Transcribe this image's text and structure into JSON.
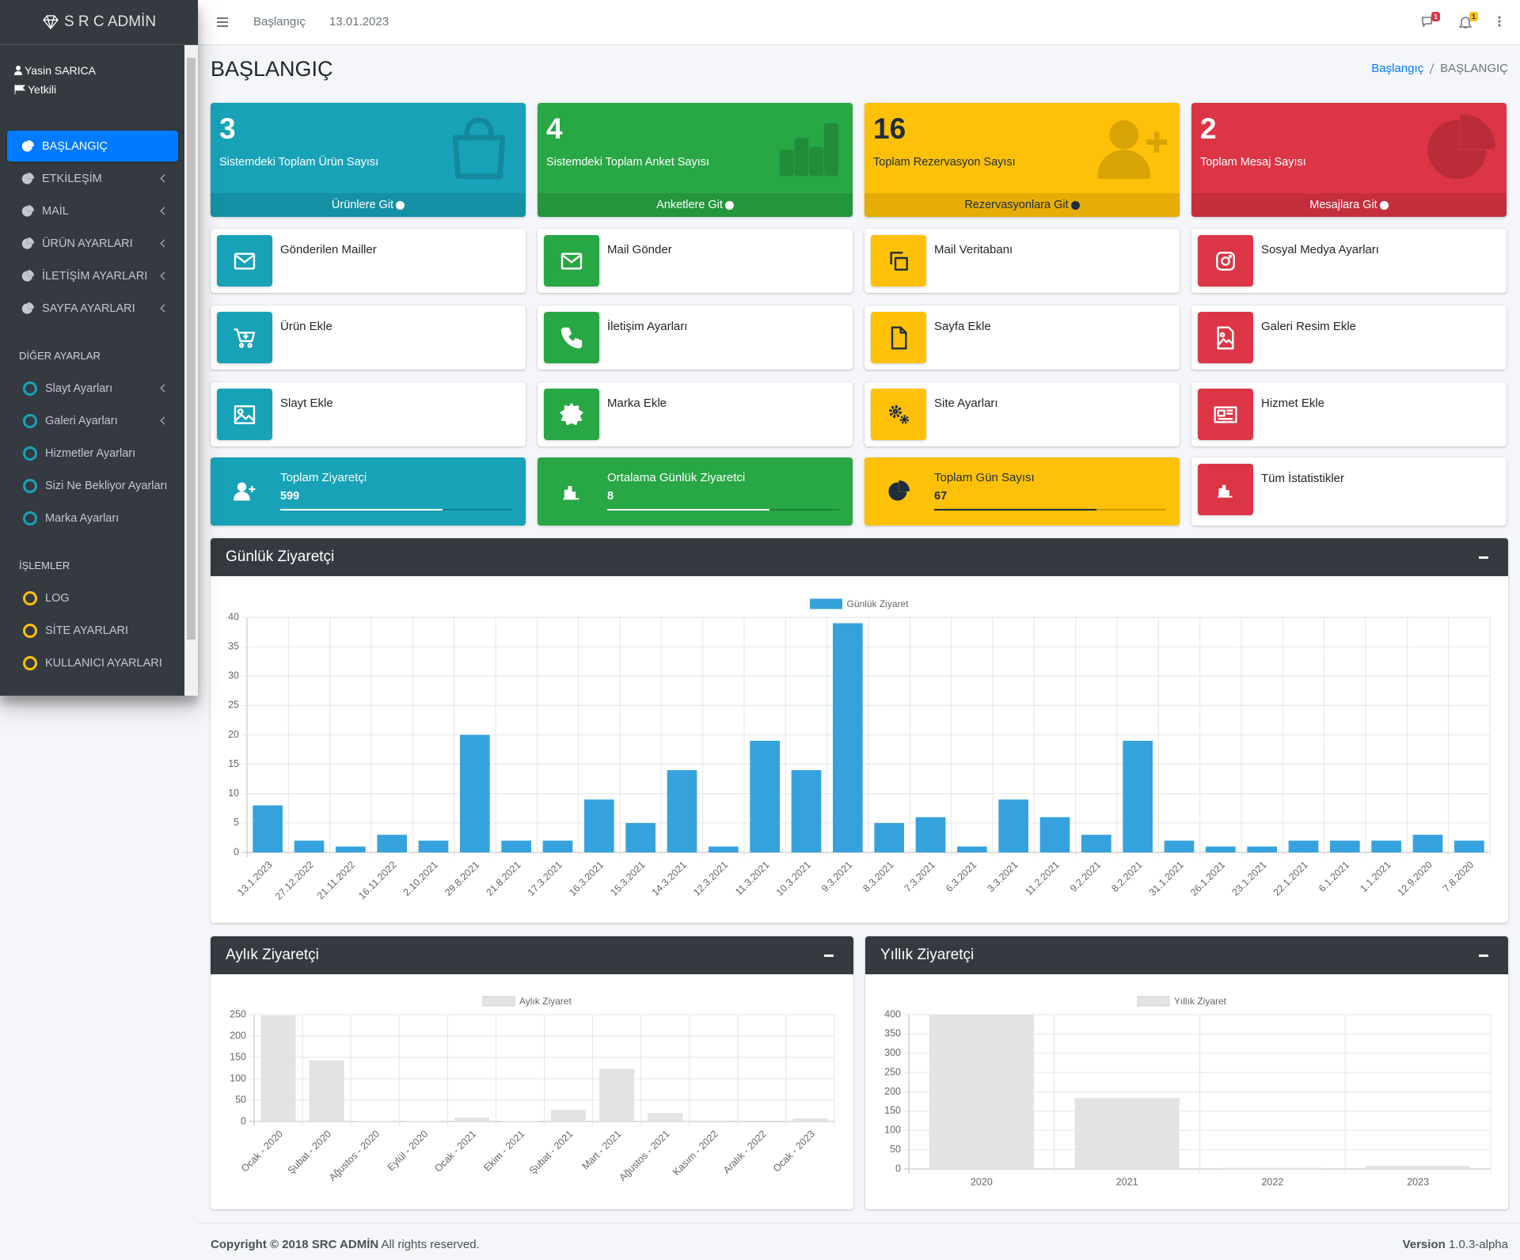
{
  "sidebar": {
    "brand": "S R C ADMİN",
    "user": {
      "name": "Yasin SARICA",
      "role": "Yetkili"
    },
    "menu": [
      {
        "label": "BAŞLANGIÇ",
        "active": true
      },
      {
        "label": "ETKİLEŞİM",
        "has_submenu": true
      },
      {
        "label": "MAİL",
        "has_submenu": true
      },
      {
        "label": "ÜRÜN AYARLARI",
        "has_submenu": true
      },
      {
        "label": "İLETİŞİM AYARLARI",
        "has_submenu": true
      },
      {
        "label": "SAYFA AYARLARI",
        "has_submenu": true
      }
    ],
    "sections": [
      {
        "header": "DİĞER AYARLAR",
        "color": "#17a2b8",
        "items": [
          {
            "label": "Slayt Ayarları",
            "has_submenu": true
          },
          {
            "label": "Galeri Ayarları",
            "has_submenu": true
          },
          {
            "label": "Hizmetler Ayarları"
          },
          {
            "label": "Sizi Ne Bekliyor Ayarları"
          },
          {
            "label": "Marka Ayarları"
          }
        ]
      },
      {
        "header": "İŞLEMLER",
        "color": "#ffc107",
        "items": [
          {
            "label": "LOG"
          },
          {
            "label": "SİTE AYARLARI"
          },
          {
            "label": "KULLANICI AYARLARI"
          }
        ]
      }
    ]
  },
  "topbar": {
    "links": [
      "Başlangıç",
      "13.01.2023"
    ],
    "badges": [
      {
        "value": 1,
        "color": "#dc3545"
      },
      {
        "value": 1,
        "color": "#ffc107"
      }
    ]
  },
  "header": {
    "title": "BAŞLANGIÇ",
    "breadcrumb": [
      "Başlangıç",
      "BAŞLANGIÇ"
    ]
  },
  "small_boxes": [
    {
      "value": 3,
      "text": "Sistemdeki Toplam Ürün Sayısı",
      "link": "Ürünlere Git",
      "color": "#17a2b8"
    },
    {
      "value": 4,
      "text": "Sistemdeki Toplam Anket Sayısı",
      "link": "Anketlere Git",
      "color": "#28a745"
    },
    {
      "value": 16,
      "text": "Toplam Rezervasyon Sayısı",
      "link": "Rezervasyonlara Git",
      "color": "#ffc107"
    },
    {
      "value": 2,
      "text": "Toplam Mesaj Sayısı",
      "link": "Mesajlara Git",
      "color": "#dc3545"
    }
  ],
  "shortcuts": [
    {
      "label": "Gönderilen Mailler",
      "color": "#17a2b8"
    },
    {
      "label": "Mail Gönder",
      "color": "#28a745"
    },
    {
      "label": "Mail Veritabanı",
      "color": "#ffc107"
    },
    {
      "label": "Sosyal Medya Ayarları",
      "color": "#dc3545"
    },
    {
      "label": "Ürün Ekle",
      "color": "#17a2b8"
    },
    {
      "label": "İletişim Ayarları",
      "color": "#28a745"
    },
    {
      "label": "Sayfa Ekle",
      "color": "#ffc107"
    },
    {
      "label": "Galeri Resim Ekle",
      "color": "#dc3545"
    },
    {
      "label": "Slayt Ekle",
      "color": "#17a2b8"
    },
    {
      "label": "Marka Ekle",
      "color": "#28a745"
    },
    {
      "label": "Site Ayarları",
      "color": "#ffc107"
    },
    {
      "label": "Hizmet Ekle",
      "color": "#dc3545"
    }
  ],
  "stats": [
    {
      "label": "Toplam Ziyaretçi",
      "value": 599,
      "color": "#17a2b8"
    },
    {
      "label": "Ortalama Günlük Ziyaretci",
      "value": 8,
      "color": "#28a745"
    },
    {
      "label": "Toplam Gün Sayısı",
      "value": 67,
      "color": "#ffc107"
    },
    {
      "label": "Tüm İstatistikler",
      "color": "#dc3545"
    }
  ],
  "chart_data": [
    {
      "type": "bar",
      "title": "Günlük Ziyaretçi",
      "categories": [
        "13.1.2023",
        "27.12.2022",
        "21.11.2022",
        "16.11.2022",
        "2.10.2021",
        "29.8.2021",
        "21.8.2021",
        "17.3.2021",
        "16.3.2021",
        "15.3.2021",
        "14.3.2021",
        "12.3.2021",
        "11.3.2021",
        "10.3.2021",
        "9.3.2021",
        "8.3.2021",
        "7.3.2021",
        "6.3.2021",
        "3.3.2021",
        "11.2.2021",
        "9.2.2021",
        "8.2.2021",
        "31.1.2021",
        "26.1.2021",
        "23.1.2021",
        "22.1.2021",
        "6.1.2021",
        "1.1.2021",
        "12.9.2020",
        "7.8.2020"
      ],
      "series": [
        {
          "name": "Günlük Ziyaret",
          "color": "#36a2dd",
          "values": [
            8,
            2,
            1,
            3,
            2,
            20,
            2,
            2,
            9,
            5,
            14,
            1,
            19,
            14,
            39,
            5,
            6,
            1,
            9,
            6,
            3,
            19,
            2,
            1,
            1,
            2,
            2,
            2,
            3,
            2
          ]
        }
      ],
      "ylim": [
        0,
        40
      ],
      "yticks": [
        0,
        5,
        10,
        15,
        20,
        25,
        30,
        35,
        40
      ],
      "grid": true
    },
    {
      "type": "bar",
      "title": "Aylık Ziyaretçi",
      "categories": [
        "Ocak - 2020",
        "Şubat - 2020",
        "Ağustos - 2020",
        "Eylül - 2020",
        "Ocak - 2021",
        "Ekim - 2021",
        "Şubat - 2021",
        "Mart - 2021",
        "Ağustos - 2021",
        "Kasım - 2022",
        "Aralık - 2022",
        "Ocak - 2023"
      ],
      "series": [
        {
          "name": "Aylık Ziyaret",
          "color": "#e3e3e3",
          "values": [
            248,
            143,
            1,
            1,
            9,
            1,
            27,
            123,
            20,
            2,
            0,
            7
          ]
        }
      ],
      "ylim": [
        0,
        250
      ],
      "yticks": [
        0,
        50,
        100,
        150,
        200,
        250
      ],
      "grid": true
    },
    {
      "type": "bar",
      "title": "Yıllık Ziyaretçi",
      "categories": [
        "2020",
        "2021",
        "2022",
        "2023"
      ],
      "series": [
        {
          "name": "Yıllık Ziyaret",
          "color": "#e3e3e3",
          "values": [
            400,
            184,
            3,
            8
          ]
        }
      ],
      "ylim": [
        0,
        400
      ],
      "yticks": [
        0,
        50,
        100,
        150,
        200,
        250,
        300,
        350,
        400
      ],
      "grid": true
    }
  ],
  "footer": {
    "copyright": "Copyright © 2018 SRC ADMİN",
    "rights": "All rights reserved.",
    "version_label": "Version",
    "version": "1.0.3-alpha"
  }
}
